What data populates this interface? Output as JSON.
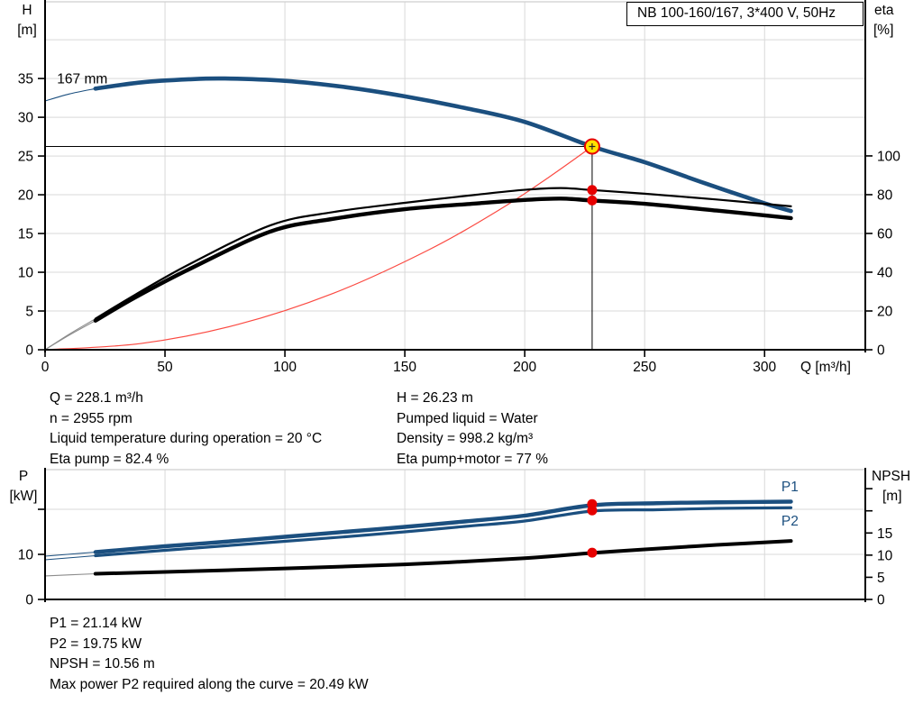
{
  "title_box": "NB 100-160/167, 3*400 V, 50Hz",
  "info_left": [
    "Q = 228.1 m³/h",
    "n = 2955 rpm",
    "Liquid temperature during operation = 20 °C",
    "Eta pump = 82.4 %"
  ],
  "info_right": [
    "H = 26.23 m",
    "Pumped liquid = Water",
    "Density = 998.2 kg/m³",
    "Eta pump+motor = 77 %"
  ],
  "info_bottom": [
    "P1 = 21.14 kW",
    "P2 = 19.75 kW",
    "NPSH = 10.56 m",
    "Max power P2 required along the curve = 20.49 kW"
  ],
  "colors": {
    "curve_blue": "#1b4f7f",
    "system_curve_red": "#fb4a42",
    "marker_red": "#e60000",
    "duty_yellow": "#ffe000",
    "grid_gray": "#d9d9d9",
    "axis_black": "#000000"
  },
  "chart_data": [
    {
      "type": "line",
      "name": "qh-eta-chart",
      "grid_color": "#d9d9d9",
      "x_axis": {
        "label": "Q [m³/h]",
        "min": 0,
        "max": 342,
        "ticks": [
          0,
          50,
          100,
          150,
          200,
          250,
          300
        ],
        "show_labels": true
      },
      "y_left": {
        "title_lines": [
          "H",
          "[m]"
        ],
        "min": 0,
        "max": 44.9,
        "ticks": [
          0,
          5,
          10,
          15,
          20,
          25,
          30,
          35
        ],
        "grid": [
          5,
          10,
          15,
          20,
          25,
          30,
          35,
          40
        ]
      },
      "y_right": {
        "title_lines": [
          "eta",
          "[%]"
        ],
        "min": 0,
        "max": 179.5,
        "ticks": [
          0,
          20,
          40,
          60,
          80,
          100
        ]
      },
      "series": [
        {
          "name": "system-curve",
          "axis": "left",
          "color": "#fb4a42",
          "width": 1.2,
          "points": [
            [
              0,
              0
            ],
            [
              40,
              0.81
            ],
            [
              80,
              3.23
            ],
            [
              120,
              7.26
            ],
            [
              160,
              12.9
            ],
            [
              190,
              18.17
            ],
            [
              210,
              22.25
            ],
            [
              228.1,
              26.23
            ]
          ]
        },
        {
          "name": "pump-curve-167mm",
          "axis": "left",
          "color": "#1b4f7f",
          "width": 4.6,
          "thin_until": 21,
          "interactable": true,
          "points": [
            [
              0,
              32.1
            ],
            [
              10,
              33.0
            ],
            [
              21,
              33.7
            ],
            [
              40,
              34.5
            ],
            [
              60,
              34.9
            ],
            [
              75,
              35.0
            ],
            [
              100,
              34.7
            ],
            [
              125,
              33.9
            ],
            [
              150,
              32.7
            ],
            [
              175,
              31.2
            ],
            [
              200,
              29.4
            ],
            [
              228.1,
              26.23
            ],
            [
              250,
              24.2
            ],
            [
              275,
              21.5
            ],
            [
              300,
              18.9
            ],
            [
              311,
              17.9
            ]
          ]
        },
        {
          "name": "eta-pump-curve",
          "axis": "right",
          "color": "#000000",
          "width": 2.2,
          "thin_until": 21,
          "thin_color": "#8c8c8c",
          "points": [
            [
              0,
              0
            ],
            [
              10,
              8
            ],
            [
              21,
              16
            ],
            [
              37.6,
              28.4
            ],
            [
              60,
              44
            ],
            [
              94,
              64.2
            ],
            [
              120,
              71
            ],
            [
              150,
              75.8
            ],
            [
              180,
              80
            ],
            [
              200,
              82.5
            ],
            [
              215,
              83.4
            ],
            [
              228.1,
              82.4
            ],
            [
              250,
              80.5
            ],
            [
              280,
              77.5
            ],
            [
              311,
              74
            ]
          ]
        },
        {
          "name": "eta-pump-motor-curve",
          "axis": "right",
          "color": "#000000",
          "width": 4.4,
          "thin_until": 21,
          "thin_color": "#8c8c8c",
          "points": [
            [
              0,
              0
            ],
            [
              10,
              7.5
            ],
            [
              21,
              15
            ],
            [
              37.6,
              27
            ],
            [
              60,
              41.5
            ],
            [
              94,
              61
            ],
            [
              120,
              67.5
            ],
            [
              150,
              72.5
            ],
            [
              180,
              75.5
            ],
            [
              200,
              77.3
            ],
            [
              215,
              78
            ],
            [
              228.1,
              77
            ],
            [
              250,
              75.3
            ],
            [
              280,
              71.8
            ],
            [
              311,
              67.9
            ]
          ]
        }
      ],
      "crosshair": {
        "q": 228.1,
        "h": 26.23
      },
      "markers": [
        {
          "name": "duty-point",
          "axis": "left",
          "q": 228.1,
          "v": 26.23,
          "style": "duty"
        },
        {
          "name": "eta-pump-point",
          "axis": "right",
          "q": 228.1,
          "v": 82.4,
          "style": "dot"
        },
        {
          "name": "eta-pump-motor-point",
          "axis": "right",
          "q": 228.1,
          "v": 77,
          "style": "dot"
        }
      ],
      "labels": [
        {
          "name": "impeller-size-label",
          "text": "167 mm",
          "q": 5,
          "v": 34.4,
          "axis": "left",
          "color": "#000000"
        }
      ]
    },
    {
      "type": "line",
      "name": "power-npsh-chart",
      "grid_color": "#d9d9d9",
      "x_axis": {
        "label": "",
        "min": 0,
        "max": 342,
        "ticks": [
          0,
          50,
          100,
          150,
          200,
          250,
          300
        ],
        "show_labels": false
      },
      "y_left": {
        "title_lines": [
          "P",
          "[kW]"
        ],
        "min": 0,
        "max": 28.8,
        "ticks": [
          0,
          10
        ],
        "extra_ticks": [
          20
        ],
        "grid": [
          10,
          20
        ]
      },
      "y_right": {
        "title_lines": [
          "NPSH",
          "[m]"
        ],
        "min": 0,
        "max": 29.3,
        "ticks": [
          0,
          5,
          10,
          15
        ],
        "extra_ticks": [
          20,
          25
        ]
      },
      "series": [
        {
          "name": "p1-curve",
          "axis": "left",
          "color": "#1b4f7f",
          "width": 4.4,
          "thin_until": 21,
          "points": [
            [
              0,
              9.6
            ],
            [
              21,
              10.5
            ],
            [
              50,
              11.8
            ],
            [
              75,
              12.8
            ],
            [
              100,
              13.9
            ],
            [
              125,
              15.0
            ],
            [
              150,
              16.1
            ],
            [
              175,
              17.3
            ],
            [
              200,
              18.6
            ],
            [
              228.1,
              20.9
            ],
            [
              255,
              21.35
            ],
            [
              280,
              21.55
            ],
            [
              311,
              21.7
            ]
          ]
        },
        {
          "name": "p2-curve",
          "axis": "left",
          "color": "#1b4f7f",
          "width": 3.2,
          "thin_until": 21,
          "points": [
            [
              0,
              8.8
            ],
            [
              21,
              9.7
            ],
            [
              50,
              10.9
            ],
            [
              75,
              11.9
            ],
            [
              100,
              12.9
            ],
            [
              125,
              13.9
            ],
            [
              150,
              15.0
            ],
            [
              175,
              16.2
            ],
            [
              200,
              17.4
            ],
            [
              228.1,
              19.6
            ],
            [
              255,
              19.9
            ],
            [
              280,
              20.2
            ],
            [
              311,
              20.35
            ]
          ]
        },
        {
          "name": "npsh-curve",
          "axis": "right",
          "color": "#000000",
          "width": 4.0,
          "thin_until": 21,
          "thin_color": "#8c8c8c",
          "points": [
            [
              0,
              5.3
            ],
            [
              21,
              5.8
            ],
            [
              50,
              6.2
            ],
            [
              100,
              7.0
            ],
            [
              150,
              7.9
            ],
            [
              200,
              9.3
            ],
            [
              228.1,
              10.5
            ],
            [
              250,
              11.3
            ],
            [
              280,
              12.3
            ],
            [
              311,
              13.2
            ]
          ]
        }
      ],
      "markers": [
        {
          "name": "p1-point",
          "axis": "left",
          "q": 228.1,
          "v": 21.14,
          "style": "dot"
        },
        {
          "name": "p2-point",
          "axis": "left",
          "q": 228.1,
          "v": 19.75,
          "style": "dot"
        },
        {
          "name": "npsh-point",
          "axis": "right",
          "q": 228.1,
          "v": 10.56,
          "style": "dot"
        }
      ],
      "labels": [
        {
          "name": "p1-curve-label",
          "text": "P1",
          "q": 307,
          "v": 24.0,
          "axis": "left",
          "color": "#1b4f7f"
        },
        {
          "name": "p2-curve-label",
          "text": "P2",
          "q": 307,
          "v": 16.4,
          "axis": "left",
          "color": "#1b4f7f"
        }
      ]
    }
  ]
}
